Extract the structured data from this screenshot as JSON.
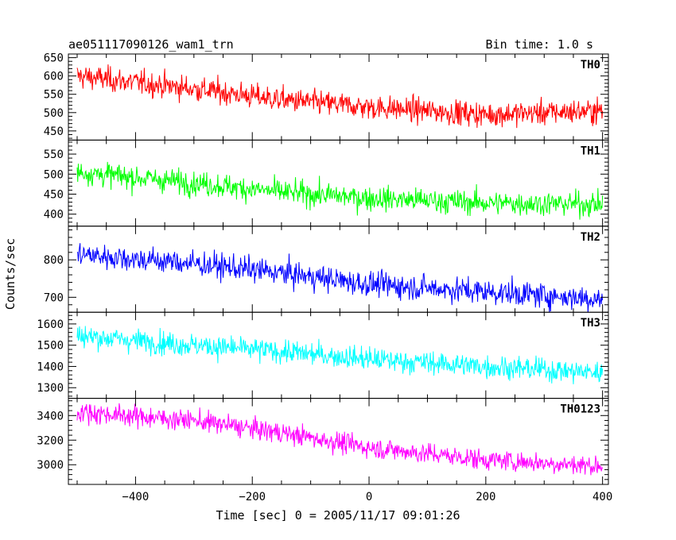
{
  "chart_data": {
    "type": "line",
    "title": "ae051117090126_wam1_trn",
    "bin_time_label": "Bin time: 1.0 s",
    "xlabel": "Time [sec] 0 = 2005/11/17 09:01:26",
    "ylabel": "Counts/sec",
    "xlim": [
      -515,
      410
    ],
    "xticks": [
      -400,
      -200,
      0,
      200,
      400
    ],
    "x_range_data": [
      -500,
      400
    ],
    "grid": false,
    "panels": [
      {
        "name": "TH0",
        "color": "#ff0000",
        "ylim": [
          425,
          660
        ],
        "yticks": [
          450,
          500,
          550,
          600,
          650
        ],
        "trend": [
          [
            -500,
            600
          ],
          [
            -300,
            565
          ],
          [
            -150,
            535
          ],
          [
            0,
            515
          ],
          [
            200,
            495
          ],
          [
            400,
            505
          ]
        ],
        "noise_sigma": 28
      },
      {
        "name": "TH1",
        "color": "#00ff00",
        "ylim": [
          370,
          585
        ],
        "yticks": [
          400,
          450,
          500,
          550
        ],
        "trend": [
          [
            -500,
            505
          ],
          [
            -300,
            478
          ],
          [
            -150,
            455
          ],
          [
            0,
            440
          ],
          [
            200,
            428
          ],
          [
            400,
            425
          ]
        ],
        "noise_sigma": 25
      },
      {
        "name": "TH2",
        "color": "#0000ff",
        "ylim": [
          660,
          890
        ],
        "yticks": [
          700,
          800
        ],
        "trend": [
          [
            -500,
            815
          ],
          [
            -300,
            790
          ],
          [
            -150,
            765
          ],
          [
            0,
            735
          ],
          [
            200,
            715
          ],
          [
            400,
            695
          ]
        ],
        "noise_sigma": 28
      },
      {
        "name": "TH3",
        "color": "#00ffff",
        "ylim": [
          1250,
          1655
        ],
        "yticks": [
          1300,
          1400,
          1500,
          1600
        ],
        "trend": [
          [
            -500,
            1545
          ],
          [
            -300,
            1500
          ],
          [
            -150,
            1470
          ],
          [
            0,
            1435
          ],
          [
            200,
            1400
          ],
          [
            400,
            1370
          ]
        ],
        "noise_sigma": 45
      },
      {
        "name": "TH0123",
        "color": "#ff00ff",
        "ylim": [
          2840,
          3540
        ],
        "yticks": [
          3000,
          3200,
          3400
        ],
        "trend": [
          [
            -500,
            3430
          ],
          [
            -300,
            3360
          ],
          [
            -150,
            3260
          ],
          [
            0,
            3140
          ],
          [
            200,
            3040
          ],
          [
            400,
            2990
          ]
        ],
        "noise_sigma": 70
      }
    ]
  }
}
